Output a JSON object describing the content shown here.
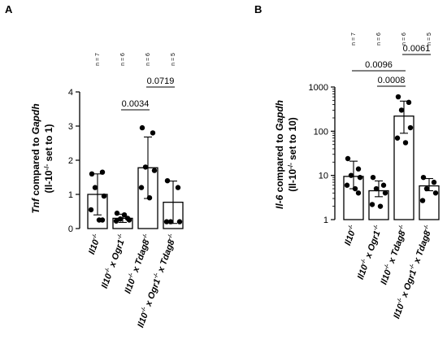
{
  "chart_data": [
    {
      "panel": "A",
      "type": "bar",
      "ylabel": {
        "line1_a": "Tnf",
        "line1_b": " compared to ",
        "line1_c": "Gapdh",
        "line2_a": "(Il-10",
        "line2_sup": "-/-",
        "line2_b": " set to 1)"
      },
      "yscale": "linear",
      "ylim": [
        0,
        4
      ],
      "yticks": [
        "0",
        "1",
        "2",
        "3",
        "4"
      ],
      "categories": [
        {
          "p1": "Il10",
          "s1": "-/-",
          "p2": "",
          "s2": "",
          "p3": "",
          "s3": ""
        },
        {
          "p1": "Il10",
          "s1": "-/-",
          "p2": " x Ogr1",
          "s2": "-/-",
          "p3": "",
          "s3": ""
        },
        {
          "p1": "Il10",
          "s1": "-/-",
          "p2": " x Tdag8",
          "s2": "-/-",
          "p3": "",
          "s3": ""
        },
        {
          "p1": "Il10",
          "s1": "-/-",
          "p2": " x Ogr1",
          "s2": "-/-",
          "p3": " x Tdag8",
          "s3": "-/-"
        }
      ],
      "n_labels": [
        "n = 7",
        "n = 6",
        "n = 6",
        "n = 5"
      ],
      "means": [
        1.0,
        0.3,
        1.78,
        0.77
      ],
      "sd": [
        0.6,
        0.12,
        0.9,
        0.62
      ],
      "points": [
        [
          1.6,
          1.65,
          1.2,
          0.95,
          0.55,
          0.25,
          0.25
        ],
        [
          0.45,
          0.3,
          0.28,
          0.25,
          0.22,
          0.4
        ],
        [
          2.95,
          2.8,
          1.8,
          1.7,
          1.2,
          0.9
        ],
        [
          1.4,
          1.2,
          0.2,
          0.2,
          0.2
        ]
      ],
      "comparisons": [
        {
          "groups": [
            1,
            2
          ],
          "label": "0.0034"
        },
        {
          "groups": [
            2,
            3
          ],
          "label": "0.0719"
        }
      ]
    },
    {
      "panel": "B",
      "type": "bar",
      "ylabel": {
        "line1_a": "Il-6",
        "line1_b": " compared to ",
        "line1_c": "Gapdh",
        "line2_a": "(Il-10",
        "line2_sup": "-/-",
        "line2_b": " set to 10)"
      },
      "yscale": "log",
      "ylim": [
        1,
        1000
      ],
      "yticks": [
        "1",
        "10",
        "100",
        "1000"
      ],
      "categories": [
        {
          "p1": "Il10",
          "s1": "-/-",
          "p2": "",
          "s2": "",
          "p3": "",
          "s3": ""
        },
        {
          "p1": "Il10",
          "s1": "-/-",
          "p2": " x Ogr1",
          "s2": "-/-",
          "p3": "",
          "s3": ""
        },
        {
          "p1": "Il10",
          "s1": "-/-",
          "p2": " x Tdag8",
          "s2": "-/-",
          "p3": "",
          "s3": ""
        },
        {
          "p1": "Il10",
          "s1": "-/-",
          "p2": " x Ogr1",
          "s2": "-/-",
          "p3": " x Tdag8",
          "s3": "-/-"
        }
      ],
      "n_labels": [
        "n = 7",
        "n = 6",
        "n = 6",
        "n = 5"
      ],
      "means": [
        9.5,
        4.5,
        220,
        5.8
      ],
      "sd_low": [
        5.0,
        3.3,
        90,
        4.5
      ],
      "sd_high": [
        21,
        7.5,
        480,
        8.5
      ],
      "points": [
        [
          24,
          14,
          10,
          9,
          6,
          5,
          4
        ],
        [
          9,
          6,
          5,
          4,
          2.2,
          2.0
        ],
        [
          600,
          450,
          300,
          120,
          70,
          55
        ],
        [
          9,
          7,
          5,
          4,
          2.7
        ]
      ],
      "comparisons": [
        {
          "groups": [
            2,
            3
          ],
          "label": "0.0061"
        },
        {
          "groups": [
            0,
            2
          ],
          "label": "0.0096"
        },
        {
          "groups": [
            1,
            2
          ],
          "label": "0.0008"
        }
      ]
    }
  ]
}
